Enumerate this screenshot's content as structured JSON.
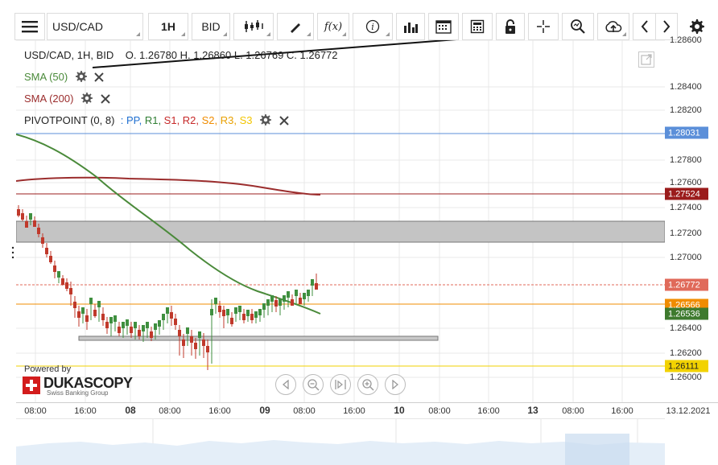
{
  "toolbar": {
    "symbol": "USD/CAD",
    "interval": "1H",
    "price_type": "BID",
    "icons": [
      "menu-icon",
      "candles-icon",
      "draw-pencil-icon",
      "function-icon",
      "info-icon",
      "bar-chart-icon",
      "calendar-icon",
      "calculator-icon",
      "lock-icon",
      "crosshair-icon",
      "zoom-search-icon",
      "cloud-upload-icon",
      "arrow-left-icon",
      "arrow-right-icon",
      "gear-icon"
    ]
  },
  "header": {
    "instrument": "USD/CAD, 1H, BID",
    "ohlc": "O. 1.26780 H. 1.26860 L. 1.26769 C. 1.26772"
  },
  "indicators": {
    "sma50": {
      "label": "SMA (50)",
      "color": "#4a8a3a"
    },
    "sma200": {
      "label": "SMA (200)",
      "color": "#9b2d2d"
    },
    "pivot": {
      "label": "PIVOTPOINT (0, 8)",
      "sep": ":",
      "levels": [
        {
          "name": "PP",
          "color": "#1f6fd0"
        },
        {
          "name": "R1",
          "color": "#2e7d32"
        },
        {
          "name": "S1",
          "color": "#c62828"
        },
        {
          "name": "R2",
          "color": "#c62828"
        },
        {
          "name": "S2",
          "color": "#f08c00"
        },
        {
          "name": "R3",
          "color": "#e8a000"
        },
        {
          "name": "S3",
          "color": "#f2c500"
        }
      ]
    }
  },
  "y_axis": {
    "ticks": [
      "1.28600",
      "1.28400",
      "1.28200",
      "1.27800",
      "1.27600",
      "1.27400",
      "1.27200",
      "1.27000",
      "1.26400",
      "1.26200",
      "1.26000"
    ],
    "badges": [
      {
        "value": "1.28031",
        "color": "#5b8fd9"
      },
      {
        "value": "1.27524",
        "color": "#9b1c1c"
      },
      {
        "value": "1.26772",
        "color": "#e06a5a"
      },
      {
        "value": "1.26566",
        "color": "#f08c00"
      },
      {
        "value": "1.26536",
        "color": "#3e7a2e"
      },
      {
        "value": "1.26111",
        "color": "#f2d200",
        "text_color": "#222"
      }
    ]
  },
  "x_axis": {
    "labels": [
      "08:00",
      "16:00",
      "08",
      "08:00",
      "16:00",
      "09",
      "08:00",
      "16:00",
      "10",
      "08:00",
      "16:00",
      "13",
      "08:00",
      "16:00",
      "13.12.2021"
    ],
    "bold": [
      "08",
      "09",
      "10",
      "13"
    ]
  },
  "branding": {
    "powered_by": "Powered by",
    "name": "DUKASCOPY",
    "tagline": "Swiss Banking Group"
  },
  "colors": {
    "bull": "#3f8f3f",
    "bear": "#c0392b",
    "sma50": "#4a8a3a",
    "sma200": "#9b2d2d",
    "grid": "#e8e8e8"
  }
}
